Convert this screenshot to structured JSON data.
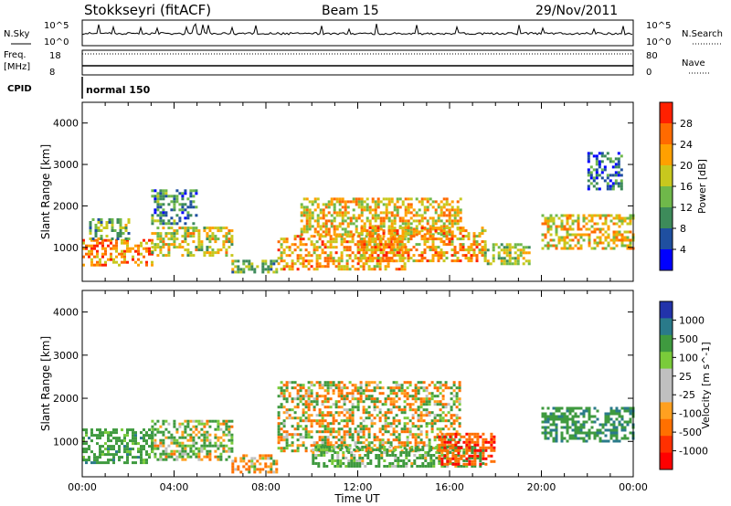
{
  "header": {
    "station": "Stokkseyri (fitACF)",
    "beam": "Beam 15",
    "date": "29/Nov/2011"
  },
  "top_panel": {
    "nsky_label": "N.Sky",
    "nsky_ticks": [
      "10^5",
      "10^0"
    ],
    "nsearch_label": "N.Search",
    "nsearch_ticks": [
      "10^5",
      "10^0"
    ],
    "freq_label": "Freq.",
    "freq_unit": "[MHz]",
    "freq_ticks": [
      "18",
      "8"
    ],
    "nave_label": "Nave",
    "nave_ticks": [
      "80",
      "0"
    ],
    "cpid_label": "CPID",
    "cpid_value": "normal 150"
  },
  "colors": {
    "power_scale": [
      "#0000ff",
      "#1f4fa0",
      "#3d8b5a",
      "#6fb84a",
      "#c8c81e",
      "#ffa000",
      "#ff6a00",
      "#ff2000"
    ],
    "velocity_scale": [
      "#2233aa",
      "#2a7a8a",
      "#3f9a3f",
      "#7acb3a",
      "#c0c0c0",
      "#c0c0c0",
      "#ffa020",
      "#ff7000",
      "#ff3000",
      "#ff0000"
    ],
    "ground_scatter": "#c0c0c0"
  },
  "chart_data": [
    {
      "type": "heatmap",
      "title": "Power",
      "xlabel": "Time UT",
      "ylabel": "Slant Range [km]",
      "x_ticks": [
        "00:00",
        "04:00",
        "08:00",
        "12:00",
        "16:00",
        "20:00",
        "00:00"
      ],
      "y_ticks": [
        "1000",
        "2000",
        "3000",
        "4000"
      ],
      "xlim_hours": [
        0,
        24
      ],
      "ylim_km": [
        180,
        4500
      ],
      "colorbar_label": "Power [dB]",
      "colorbar_ticks": [
        "4",
        "8",
        "12",
        "16",
        "20",
        "24",
        "28"
      ],
      "colorbar_range": [
        0,
        32
      ],
      "echo_regions": [
        {
          "t": [
            0.0,
            3.0
          ],
          "r": [
            600,
            1200
          ],
          "dB": 24
        },
        {
          "t": [
            0.3,
            2.0
          ],
          "r": [
            1200,
            1700
          ],
          "dB": 14
        },
        {
          "t": [
            3.0,
            6.5
          ],
          "r": [
            800,
            1500
          ],
          "dB": 18
        },
        {
          "t": [
            3.0,
            5.0
          ],
          "r": [
            1600,
            2400
          ],
          "dB": 10
        },
        {
          "t": [
            6.5,
            8.5
          ],
          "r": [
            400,
            700
          ],
          "dB": 14
        },
        {
          "t": [
            8.5,
            14.0
          ],
          "r": [
            500,
            1300
          ],
          "dB": 22
        },
        {
          "t": [
            9.5,
            16.5
          ],
          "r": [
            1300,
            2200
          ],
          "dB": 20
        },
        {
          "t": [
            12.0,
            17.5
          ],
          "r": [
            700,
            1500
          ],
          "dB": 22
        },
        {
          "t": [
            17.5,
            19.5
          ],
          "r": [
            600,
            1100
          ],
          "dB": 16
        },
        {
          "t": [
            20.0,
            24.0
          ],
          "r": [
            1000,
            1800
          ],
          "dB": 20
        },
        {
          "t": [
            22.0,
            23.5
          ],
          "r": [
            2400,
            3300
          ],
          "dB": 8
        }
      ]
    },
    {
      "type": "heatmap",
      "title": "Velocity",
      "xlabel": "Time UT",
      "ylabel": "Slant Range [km]",
      "x_ticks": [
        "00:00",
        "04:00",
        "08:00",
        "12:00",
        "16:00",
        "20:00",
        "00:00"
      ],
      "y_ticks": [
        "1000",
        "2000",
        "3000",
        "4000"
      ],
      "xlim_hours": [
        0,
        24
      ],
      "ylim_km": [
        180,
        4500
      ],
      "colorbar_label": "Velocity [m s^-1]",
      "colorbar_ticks": [
        "1000",
        "500",
        "100",
        "25",
        "-25",
        "-100",
        "-500",
        "-1000"
      ],
      "echo_regions": [
        {
          "t": [
            0.0,
            3.0
          ],
          "r": [
            500,
            1300
          ],
          "v": 300
        },
        {
          "t": [
            3.0,
            6.5
          ],
          "r": [
            600,
            1500
          ],
          "v": 100
        },
        {
          "t": [
            6.5,
            8.5
          ],
          "r": [
            300,
            700
          ],
          "v": -100
        },
        {
          "t": [
            8.5,
            16.5
          ],
          "r": [
            800,
            2400
          ],
          "v": 0
        },
        {
          "t": [
            10.0,
            17.5
          ],
          "r": [
            400,
            900
          ],
          "v": 200
        },
        {
          "t": [
            15.5,
            18.0
          ],
          "r": [
            500,
            1200
          ],
          "v": -400
        },
        {
          "t": [
            20.0,
            24.0
          ],
          "r": [
            1000,
            1800
          ],
          "v": 400
        }
      ]
    }
  ]
}
